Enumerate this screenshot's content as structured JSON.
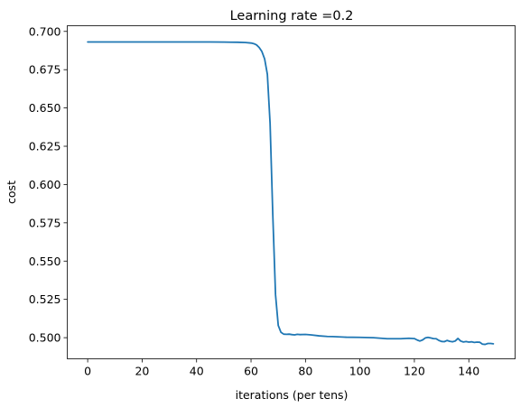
{
  "chart_data": {
    "type": "line",
    "title": "Learning rate =0.2",
    "xlabel": "iterations (per tens)",
    "ylabel": "cost",
    "xlim": [
      -7.5,
      157
    ],
    "ylim": [
      0.4862,
      0.7037
    ],
    "xticks": [
      0,
      20,
      40,
      60,
      80,
      100,
      120,
      140
    ],
    "yticks": [
      0.5,
      0.525,
      0.55,
      0.575,
      0.6,
      0.625,
      0.65,
      0.675,
      0.7
    ],
    "ytick_labels": [
      "0.500",
      "0.525",
      "0.550",
      "0.575",
      "0.600",
      "0.625",
      "0.650",
      "0.675",
      "0.700"
    ],
    "xtick_labels": [
      "0",
      "20",
      "40",
      "60",
      "80",
      "100",
      "120",
      "140"
    ],
    "grid": false,
    "color": "#1f77b4",
    "series": [
      {
        "x": [
          0,
          5,
          10,
          15,
          20,
          25,
          30,
          35,
          40,
          45,
          50,
          55,
          58,
          60,
          61,
          62,
          63,
          64,
          65,
          66,
          67,
          68,
          69,
          70,
          71,
          72,
          73,
          74,
          75,
          76,
          77,
          78,
          80,
          82,
          85,
          88,
          90,
          95,
          100,
          105,
          110,
          115,
          118,
          120,
          121,
          122,
          123,
          124,
          125,
          126,
          127,
          128,
          129,
          130,
          131,
          132,
          133,
          134,
          135,
          136,
          137,
          138,
          139,
          140,
          141,
          142,
          143,
          144,
          145,
          146,
          147,
          148,
          149
        ],
        "y": [
          0.6931,
          0.6931,
          0.6931,
          0.6931,
          0.6931,
          0.6931,
          0.6931,
          0.6931,
          0.6931,
          0.6931,
          0.693,
          0.6929,
          0.6927,
          0.6924,
          0.692,
          0.6912,
          0.6895,
          0.6868,
          0.682,
          0.672,
          0.64,
          0.58,
          0.528,
          0.508,
          0.5035,
          0.5023,
          0.5022,
          0.5023,
          0.502,
          0.5018,
          0.5022,
          0.502,
          0.5021,
          0.5018,
          0.5012,
          0.5008,
          0.5007,
          0.5003,
          0.5002,
          0.5,
          0.4993,
          0.4993,
          0.4996,
          0.4994,
          0.4985,
          0.4978,
          0.4985,
          0.4998,
          0.5002,
          0.4998,
          0.4994,
          0.4993,
          0.4982,
          0.4975,
          0.4974,
          0.4982,
          0.4976,
          0.4973,
          0.4978,
          0.4995,
          0.4978,
          0.4972,
          0.4975,
          0.4971,
          0.4973,
          0.4969,
          0.4971,
          0.497,
          0.4958,
          0.4956,
          0.4962,
          0.4962,
          0.496
        ]
      }
    ]
  }
}
